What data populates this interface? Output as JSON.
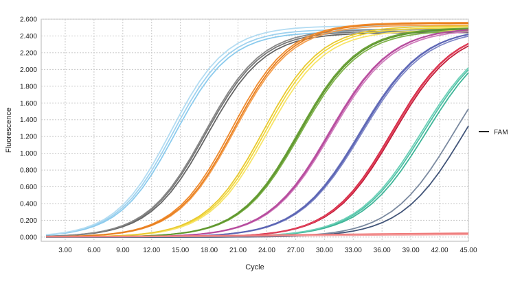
{
  "chart_data": {
    "type": "line",
    "xlabel": "Cycle",
    "ylabel": "Fluorescence",
    "xlim": [
      0.5,
      45
    ],
    "ylim": [
      -0.05,
      2.6
    ],
    "x_ticks": [
      3,
      6,
      9,
      12,
      15,
      18,
      21,
      24,
      27,
      30,
      33,
      36,
      39,
      42,
      45
    ],
    "x_tick_labels": [
      "3.00",
      "6.00",
      "9.00",
      "12.00",
      "15.00",
      "18.00",
      "21.00",
      "24.00",
      "27.00",
      "30.00",
      "33.00",
      "36.00",
      "39.00",
      "42.00",
      "45.00"
    ],
    "y_ticks": [
      0,
      0.2,
      0.4,
      0.6,
      0.8,
      1.0,
      1.2,
      1.4,
      1.6,
      1.8,
      2.0,
      2.2,
      2.4,
      2.6
    ],
    "y_tick_labels": [
      "0.000",
      "0.200",
      "0.400",
      "0.600",
      "0.800",
      "1.000",
      "1.200",
      "1.400",
      "1.600",
      "1.800",
      "2.000",
      "2.200",
      "2.400",
      "2.600"
    ],
    "grid": true,
    "legend": {
      "position": "right",
      "entries": [
        {
          "label": "FAM",
          "color": "#222222"
        }
      ]
    },
    "series": [
      {
        "color": "#9fd2ef",
        "plateau": 2.48,
        "midpoint": 14.2,
        "slope": 2.9
      },
      {
        "color": "#8ccbed",
        "plateau": 2.45,
        "midpoint": 14.4,
        "slope": 2.9
      },
      {
        "color": "#b3dcf2",
        "plateau": 2.52,
        "midpoint": 14.0,
        "slope": 2.9
      },
      {
        "color": "#777777",
        "plateau": 2.46,
        "midpoint": 17.6,
        "slope": 3.0
      },
      {
        "color": "#666666",
        "plateau": 2.44,
        "midpoint": 17.8,
        "slope": 3.0
      },
      {
        "color": "#888888",
        "plateau": 2.48,
        "midpoint": 17.5,
        "slope": 3.0
      },
      {
        "color": "#f08a2c",
        "plateau": 2.56,
        "midpoint": 20.3,
        "slope": 3.0
      },
      {
        "color": "#f5a050",
        "plateau": 2.53,
        "midpoint": 20.6,
        "slope": 3.0
      },
      {
        "color": "#e77f20",
        "plateau": 2.55,
        "midpoint": 20.5,
        "slope": 3.0
      },
      {
        "color": "#f2d83a",
        "plateau": 2.5,
        "midpoint": 23.8,
        "slope": 3.0
      },
      {
        "color": "#f7e46a",
        "plateau": 2.47,
        "midpoint": 24.0,
        "slope": 3.0
      },
      {
        "color": "#e8c930",
        "plateau": 2.52,
        "midpoint": 23.6,
        "slope": 3.0
      },
      {
        "color": "#6ca33a",
        "plateau": 2.5,
        "midpoint": 27.3,
        "slope": 3.1
      },
      {
        "color": "#7fb34a",
        "plateau": 2.47,
        "midpoint": 27.5,
        "slope": 3.1
      },
      {
        "color": "#5f962f",
        "plateau": 2.49,
        "midpoint": 27.4,
        "slope": 3.1
      },
      {
        "color": "#c05aa8",
        "plateau": 2.5,
        "midpoint": 30.5,
        "slope": 3.2
      },
      {
        "color": "#d07cbc",
        "plateau": 2.48,
        "midpoint": 30.7,
        "slope": 3.2
      },
      {
        "color": "#b54a9c",
        "plateau": 2.5,
        "midpoint": 30.6,
        "slope": 3.2
      },
      {
        "color": "#6a73bd",
        "plateau": 2.5,
        "midpoint": 33.7,
        "slope": 3.3
      },
      {
        "color": "#8088c8",
        "plateau": 2.48,
        "midpoint": 33.9,
        "slope": 3.3
      },
      {
        "color": "#5b64b3",
        "plateau": 2.5,
        "midpoint": 33.8,
        "slope": 3.3
      },
      {
        "color": "#d42a45",
        "plateau": 2.5,
        "midpoint": 37.0,
        "slope": 3.2
      },
      {
        "color": "#c21e3a",
        "plateau": 2.48,
        "midpoint": 37.2,
        "slope": 3.2
      },
      {
        "color": "#e0405a",
        "plateau": 2.5,
        "midpoint": 37.1,
        "slope": 3.2
      },
      {
        "color": "#4fc2a6",
        "plateau": 2.5,
        "midpoint": 40.3,
        "slope": 3.4
      },
      {
        "color": "#3fb598",
        "plateau": 2.5,
        "midpoint": 40.6,
        "slope": 3.4
      },
      {
        "color": "#6dd0b8",
        "plateau": 2.5,
        "midpoint": 40.1,
        "slope": 3.4
      },
      {
        "color": "#7b8aa0",
        "plateau": 2.5,
        "midpoint": 43.5,
        "slope": 3.3
      },
      {
        "color": "#43567a",
        "plateau": 2.5,
        "midpoint": 44.6,
        "slope": 3.3
      },
      {
        "color": "#f28a8a",
        "plateau": 0.05,
        "midpoint": 30.0,
        "slope": 12.0
      },
      {
        "color": "#f4a0a0",
        "plateau": 0.04,
        "midpoint": 32.0,
        "slope": 12.0
      },
      {
        "color": "#ef7c7c",
        "plateau": 0.06,
        "midpoint": 29.0,
        "slope": 12.0
      }
    ]
  }
}
